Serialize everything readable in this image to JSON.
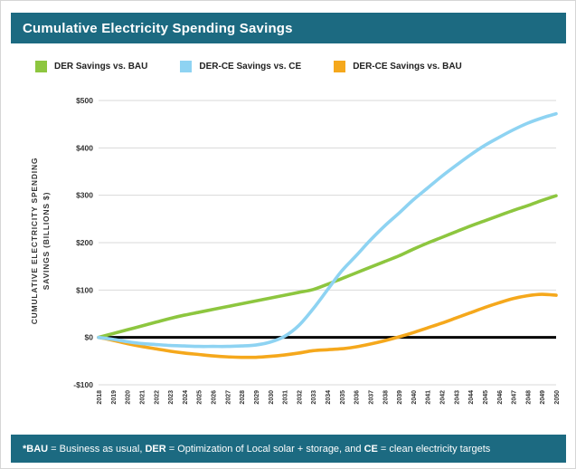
{
  "header": {
    "title": "Cumulative Electricity Spending Savings"
  },
  "legend": [
    {
      "label": "DER Savings vs. BAU",
      "color": "#8dc63f"
    },
    {
      "label": "DER-CE Savings vs. CE",
      "color": "#8ed3f2"
    },
    {
      "label": "DER-CE Savings vs. BAU",
      "color": "#f5a81c"
    }
  ],
  "chart_data": {
    "type": "line",
    "title": "Cumulative Electricity Spending Savings",
    "ylabel": "CUMULATIVE ELECTRICITY SPENDING SAVINGS (BILLIONS $)",
    "ylabel_lines": [
      "CUMULATIVE ELECTRICITY SPENDING",
      "SAVINGS (BILLIONS $)"
    ],
    "xlabel": "",
    "ylim": [
      -100,
      500
    ],
    "ytick_step": 100,
    "yticks": [
      "$500",
      "$400",
      "$300",
      "$200",
      "$100",
      "$0",
      "-$100"
    ],
    "grid": true,
    "zero_line": true,
    "legend_position": "top",
    "x": [
      2018,
      2019,
      2020,
      2021,
      2022,
      2023,
      2024,
      2025,
      2026,
      2027,
      2028,
      2029,
      2030,
      2031,
      2032,
      2033,
      2034,
      2035,
      2036,
      2037,
      2038,
      2039,
      2040,
      2041,
      2042,
      2043,
      2044,
      2045,
      2046,
      2047,
      2048,
      2049,
      2050
    ],
    "series": [
      {
        "name": "DER Savings vs. BAU",
        "color": "#8dc63f",
        "values": [
          0,
          8,
          16,
          24,
          32,
          40,
          47,
          53,
          59,
          65,
          71,
          77,
          83,
          89,
          95,
          101,
          112,
          124,
          136,
          148,
          160,
          172,
          186,
          199,
          211,
          223,
          235,
          246,
          257,
          268,
          278,
          289,
          299
        ]
      },
      {
        "name": "DER-CE Savings vs. CE",
        "color": "#8ed3f2",
        "values": [
          0,
          -4,
          -9,
          -13,
          -15,
          -17,
          -18,
          -19,
          -19,
          -19,
          -18,
          -16,
          -10,
          2,
          25,
          60,
          100,
          140,
          172,
          205,
          235,
          262,
          290,
          315,
          340,
          363,
          385,
          405,
          422,
          438,
          452,
          463,
          472
        ]
      },
      {
        "name": "DER-CE Savings vs. BAU",
        "color": "#f5a81c",
        "values": [
          0,
          -6,
          -13,
          -19,
          -24,
          -29,
          -33,
          -36,
          -39,
          -41,
          -42,
          -42,
          -40,
          -37,
          -33,
          -28,
          -26,
          -24,
          -20,
          -14,
          -7,
          1,
          10,
          20,
          30,
          41,
          52,
          63,
          73,
          82,
          88,
          91,
          89
        ]
      }
    ]
  },
  "footer": {
    "segments": [
      {
        "text": "*BAU",
        "bold": true
      },
      {
        "text": " = Business as usual, ",
        "bold": false
      },
      {
        "text": "DER",
        "bold": true
      },
      {
        "text": " = Optimization of Local solar + storage, and ",
        "bold": false
      },
      {
        "text": "CE",
        "bold": true
      },
      {
        "text": " = clean electricity targets",
        "bold": false
      }
    ]
  },
  "colors": {
    "header_bg": "#1c6a81",
    "footer_bg": "#1c6a81",
    "grid": "#d9d9d9",
    "zero_line": "#000000",
    "tick_text": "#333333"
  }
}
